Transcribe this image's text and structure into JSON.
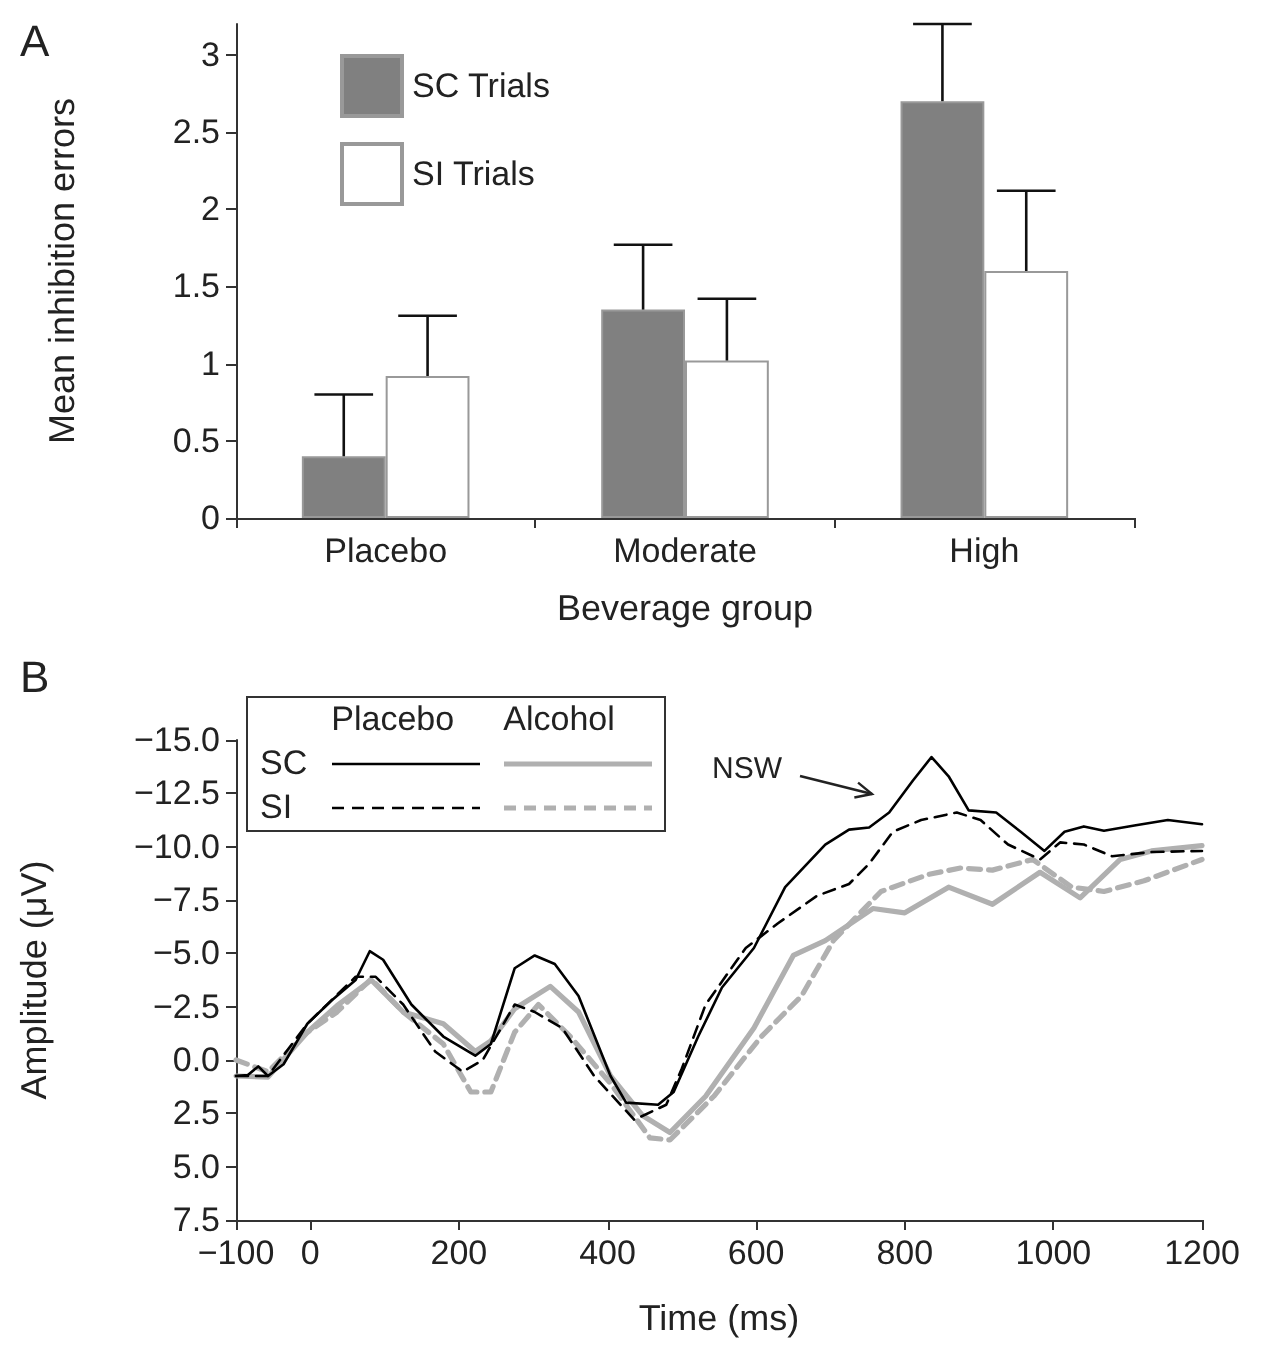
{
  "chart_data": [
    {
      "type": "bar",
      "xlabel": "Beverage group",
      "ylabel": "Mean inhibition errors",
      "annotations": [
        "A"
      ],
      "categories": [
        "Placebo",
        "Moderate",
        "High"
      ],
      "series": [
        {
          "name": "SC Trials",
          "color": "#808080",
          "values": [
            0.4,
            1.35,
            2.7
          ],
          "errors": [
            [
              0.4,
              0.8
            ],
            [
              1.35,
              1.77
            ],
            [
              2.7,
              3.2
            ]
          ]
        },
        {
          "name": "SI Trials",
          "color": "#ffffff",
          "values": [
            0.92,
            1.02,
            1.6
          ],
          "errors": [
            [
              0.92,
              1.31
            ],
            [
              1.02,
              1.42
            ],
            [
              1.6,
              2.12
            ]
          ]
        }
      ],
      "ylim": [
        0,
        3.2
      ],
      "yticks": [
        0,
        0.5,
        1,
        1.5,
        2,
        2.5,
        3
      ],
      "legend": "top left"
    },
    {
      "type": "line",
      "xlabel": "Time (ms)",
      "ylabel": "Amplitude (μV)",
      "marker": "none",
      "annotations": [
        "B",
        "Placebo",
        "Alcohol",
        "SC",
        "SI",
        "NSW"
      ],
      "series": [
        {
          "color": "#000000",
          "line_style": "solid",
          "x": [
            -100,
            -84,
            -70,
            -57,
            -36,
            -4,
            29,
            61,
            80,
            98,
            136,
            179,
            222,
            243,
            275,
            302,
            329,
            361,
            404,
            425,
            468,
            489,
            522,
            554,
            597,
            639,
            693,
            725,
            752,
            779,
            811,
            836,
            859,
            886,
            923,
            956,
            988,
            1015,
            1041,
            1068,
            1111,
            1154,
            1200
          ],
          "values": [
            0.75,
            0.7,
            0.3,
            0.75,
            0.2,
            -1.7,
            -2.8,
            -3.75,
            -5.1,
            -4.7,
            -2.6,
            -1.1,
            -0.2,
            -0.75,
            -4.3,
            -4.9,
            -4.5,
            -3.0,
            0.75,
            2.0,
            2.1,
            1.5,
            -1.1,
            -3.4,
            -5.25,
            -8.1,
            -10.1,
            -10.8,
            -10.9,
            -11.6,
            -13.1,
            -14.2,
            -13.3,
            -11.7,
            -11.6,
            -10.7,
            -9.8,
            -10.7,
            -10.95,
            -10.75,
            -11.0,
            -11.25,
            -11.05
          ]
        },
        {
          "color": "#000000",
          "line_style": "dashed",
          "x": [
            -100,
            -57,
            -4,
            61,
            88,
            125,
            168,
            205,
            232,
            275,
            302,
            339,
            382,
            436,
            479,
            500,
            532,
            586,
            629,
            682,
            725,
            752,
            784,
            822,
            870,
            902,
            939,
            982,
            1009,
            1041,
            1079,
            1132,
            1200
          ],
          "values": [
            0.75,
            0.75,
            -1.7,
            -3.9,
            -3.9,
            -2.6,
            -0.4,
            0.55,
            0.0,
            -2.6,
            -2.25,
            -1.5,
            0.75,
            2.8,
            2.1,
            0.4,
            -2.6,
            -5.25,
            -6.4,
            -7.7,
            -8.25,
            -9.2,
            -10.7,
            -11.25,
            -11.6,
            -11.25,
            -10.1,
            -9.4,
            -10.2,
            -10.1,
            -9.55,
            -9.75,
            -9.8
          ]
        },
        {
          "color": "#b0b0b0",
          "line_style": "solid",
          "x": [
            -100,
            -57,
            -4,
            36,
            82,
            125,
            179,
            222,
            243,
            275,
            323,
            361,
            404,
            447,
            484,
            532,
            597,
            650,
            693,
            757,
            800,
            859,
            918,
            982,
            1036,
            1090,
            1132,
            1200
          ],
          "values": [
            0.75,
            0.8,
            -1.3,
            -2.55,
            -3.75,
            -2.25,
            -1.7,
            -0.4,
            -0.9,
            -2.4,
            -3.45,
            -2.25,
            0.75,
            2.6,
            3.4,
            1.7,
            -1.5,
            -4.9,
            -5.6,
            -7.1,
            -6.9,
            -8.1,
            -7.3,
            -8.8,
            -7.6,
            -9.4,
            -9.8,
            -10.05
          ]
        },
        {
          "color": "#b0b0b0",
          "line_style": "dashed",
          "x": [
            -100,
            -57,
            -4,
            36,
            82,
            125,
            179,
            216,
            243,
            275,
            307,
            350,
            404,
            457,
            484,
            543,
            607,
            661,
            704,
            768,
            832,
            875,
            918,
            972,
            1025,
            1068,
            1122,
            1200
          ],
          "values": [
            0.0,
            0.55,
            -1.3,
            -2.25,
            -3.8,
            -2.25,
            -0.75,
            1.5,
            1.5,
            -1.3,
            -2.6,
            -1.1,
            1.1,
            3.65,
            3.75,
            1.7,
            -1.1,
            -3.0,
            -5.6,
            -7.9,
            -8.7,
            -9.0,
            -8.9,
            -9.4,
            -8.1,
            -7.9,
            -8.4,
            -9.4
          ]
        }
      ],
      "xlim": [
        -100,
        1200
      ],
      "xticks": [
        {
          "value": -100,
          "label": "−100"
        },
        0,
        200,
        400,
        600,
        800,
        1000,
        1200
      ],
      "ylim": [
        7.5,
        -15
      ],
      "yticks": [
        {
          "value": -15,
          "label": "−15.0"
        },
        {
          "value": -12.5,
          "label": "−12.5"
        },
        {
          "value": -10,
          "label": "−10.0"
        },
        {
          "value": -7.5,
          "label": "−7.5"
        },
        {
          "value": -5,
          "label": "−5.0"
        },
        {
          "value": -2.5,
          "label": "−2.5"
        },
        {
          "value": 0,
          "label": "0.0"
        },
        2.5,
        {
          "value": 5,
          "label": "5.0"
        },
        7.5
      ]
    }
  ]
}
